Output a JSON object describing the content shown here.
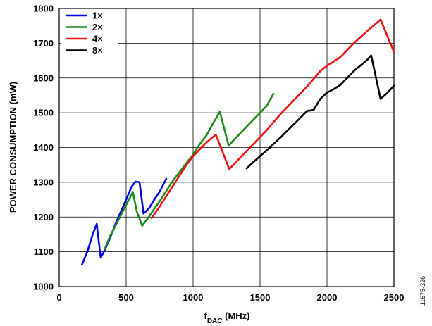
{
  "figure_id": "11675-326",
  "chart_data": {
    "type": "line",
    "xlabel_main": "f",
    "xlabel_sub": "DAC",
    "xlabel_unit": " (MHz)",
    "ylabel": "POWER CONSUMPTION (mW)",
    "xlim": [
      0,
      2500
    ],
    "ylim": [
      1000,
      1800
    ],
    "x_ticks": [
      "0",
      "500",
      "1000",
      "1500",
      "2000",
      "2500"
    ],
    "y_ticks": [
      "1000",
      "1100",
      "1200",
      "1300",
      "1400",
      "1500",
      "1600",
      "1700",
      "1800"
    ],
    "grid": true,
    "legend_position": "top-left",
    "series": [
      {
        "name": "1×",
        "color": "#0000ee",
        "x": [
          170,
          210,
          250,
          280,
          310,
          340,
          380,
          420,
          460,
          500,
          540,
          570,
          600,
          630,
          670,
          710,
          750,
          800
        ],
        "y": [
          1063,
          1100,
          1150,
          1180,
          1083,
          1105,
          1140,
          1180,
          1215,
          1250,
          1287,
          1302,
          1300,
          1210,
          1225,
          1250,
          1273,
          1310
        ]
      },
      {
        "name": "2×",
        "color": "#1a8a1a",
        "x": [
          340,
          380,
          420,
          460,
          500,
          550,
          580,
          620,
          660,
          700,
          750,
          800,
          850,
          900,
          950,
          1000,
          1050,
          1100,
          1150,
          1200,
          1265,
          1300,
          1350,
          1400,
          1450,
          1500,
          1550,
          1600
        ],
        "y": [
          1108,
          1145,
          1175,
          1205,
          1235,
          1272,
          1215,
          1175,
          1195,
          1218,
          1245,
          1275,
          1305,
          1330,
          1355,
          1380,
          1410,
          1435,
          1470,
          1503,
          1405,
          1420,
          1440,
          1460,
          1480,
          1500,
          1520,
          1555
        ]
      },
      {
        "name": "4×",
        "color": "#ee1111",
        "x": [
          690,
          750,
          800,
          850,
          900,
          950,
          1000,
          1050,
          1100,
          1170,
          1270,
          1350,
          1450,
          1550,
          1650,
          1750,
          1850,
          1950,
          2000,
          2100,
          2200,
          2300,
          2400,
          2500
        ],
        "y": [
          1197,
          1230,
          1260,
          1290,
          1320,
          1350,
          1375,
          1395,
          1415,
          1437,
          1338,
          1370,
          1410,
          1450,
          1495,
          1535,
          1575,
          1620,
          1635,
          1660,
          1700,
          1735,
          1768,
          1675
        ]
      },
      {
        "name": "8×",
        "color": "#000000",
        "x": [
          1400,
          1450,
          1500,
          1550,
          1600,
          1650,
          1700,
          1750,
          1800,
          1850,
          1900,
          1950,
          2000,
          2050,
          2100,
          2150,
          2200,
          2250,
          2300,
          2330,
          2400,
          2450,
          2500
        ],
        "y": [
          1340,
          1358,
          1375,
          1392,
          1410,
          1428,
          1447,
          1466,
          1485,
          1505,
          1508,
          1540,
          1558,
          1568,
          1580,
          1600,
          1620,
          1636,
          1652,
          1665,
          1540,
          1557,
          1578
        ]
      }
    ]
  }
}
